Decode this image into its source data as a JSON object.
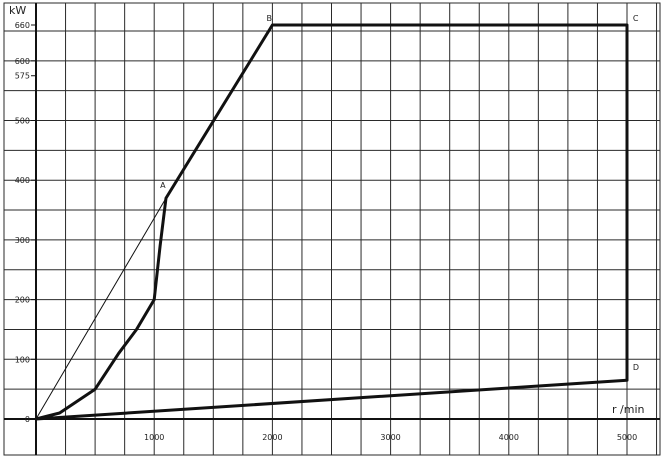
{
  "chart_data": {
    "type": "line",
    "ylabel": "kW",
    "xlabel": "r /min",
    "xlim": [
      0,
      5000
    ],
    "ylim": [
      0,
      660
    ],
    "grid": true,
    "x_ticks": [
      1000,
      2000,
      3000,
      4000,
      5000
    ],
    "x_tick_labels": [
      "1000",
      "2000",
      "3000",
      "4000",
      "5000"
    ],
    "y_ticks": [
      0,
      100,
      200,
      300,
      400,
      500,
      575,
      600,
      660
    ],
    "y_tick_labels": [
      "0",
      "100",
      "200",
      "300",
      "400",
      "500",
      "575",
      "600",
      "660"
    ],
    "series": [
      {
        "style": "thick",
        "x": [
          0,
          200,
          500,
          700,
          850,
          1000,
          1050,
          1100,
          2000,
          5000,
          5000,
          0
        ],
        "y": [
          0,
          10,
          50,
          110,
          150,
          200,
          290,
          370,
          660,
          660,
          65,
          0
        ]
      },
      {
        "style": "thin",
        "x": [
          0,
          1100
        ],
        "y": [
          0,
          370
        ]
      }
    ],
    "point_labels": [
      {
        "text": "A",
        "x": 1050,
        "y": 380
      },
      {
        "text": "B",
        "x": 1950,
        "y": 660
      },
      {
        "text": "C",
        "x": 5050,
        "y": 660
      },
      {
        "text": "D",
        "x": 5050,
        "y": 75
      }
    ]
  }
}
